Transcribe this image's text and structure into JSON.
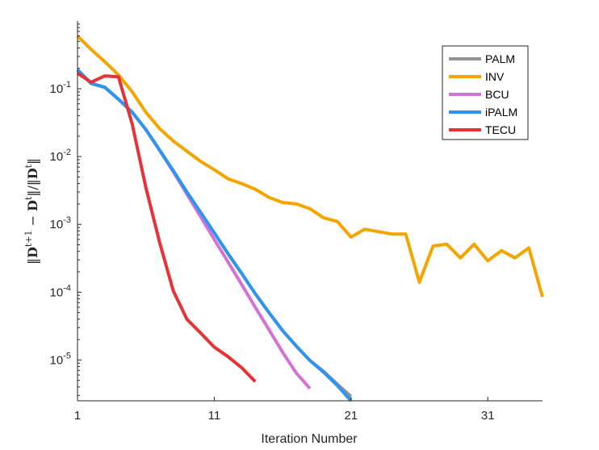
{
  "chart_data": {
    "type": "line",
    "xlabel": "Iteration Number",
    "ylabel": "||D^{t+1} − D^t|| / ||D^t||",
    "ylabel_parts": {
      "n1": "D",
      "s1": "t+1",
      "m": " − ",
      "n2": "D",
      "s2": "t",
      "div": "/",
      "d": "D",
      "s3": "t"
    },
    "xlim": [
      1,
      35
    ],
    "ylim": [
      2.5e-06,
      1
    ],
    "yscale": "log",
    "xticks": [
      1,
      11,
      21,
      31
    ],
    "xtick_labels": [
      "1",
      "11",
      "21",
      "31"
    ],
    "yticks": [
      1e-05,
      0.0001,
      0.001,
      0.01,
      0.1
    ],
    "ytick_labels": [
      {
        "base": "10",
        "exp": "-5"
      },
      {
        "base": "10",
        "exp": "-4"
      },
      {
        "base": "10",
        "exp": "-3"
      },
      {
        "base": "10",
        "exp": "-2"
      },
      {
        "base": "10",
        "exp": "-1"
      }
    ],
    "legend_position": "top-right",
    "grid": false,
    "series": [
      {
        "name": "PALM",
        "color": "#939393",
        "x": [
          1,
          2,
          3,
          4,
          5,
          6,
          7,
          8,
          9,
          10,
          11,
          12,
          13,
          14,
          15,
          16,
          17,
          18,
          19,
          20,
          21
        ],
        "y": [
          0.19,
          0.12,
          0.105,
          0.07,
          0.045,
          0.025,
          0.0125,
          0.0062,
          0.003,
          0.0015,
          0.00075,
          0.00037,
          0.00019,
          9.5e-05,
          5e-05,
          2.7e-05,
          1.6e-05,
          9.8e-06,
          6.8e-06,
          4.4e-06,
          2.9e-06
        ]
      },
      {
        "name": "INV",
        "color": "#f5a500",
        "x": [
          1,
          2,
          3,
          4,
          5,
          6,
          7,
          8,
          9,
          10,
          11,
          12,
          13,
          14,
          15,
          16,
          17,
          18,
          19,
          20,
          21,
          22,
          23,
          24,
          25,
          26,
          27,
          28,
          29,
          30,
          31,
          32,
          33,
          34,
          35
        ],
        "y": [
          0.6,
          0.38,
          0.25,
          0.16,
          0.09,
          0.045,
          0.026,
          0.017,
          0.012,
          0.0085,
          0.0064,
          0.0047,
          0.004,
          0.0033,
          0.0025,
          0.0021,
          0.002,
          0.0017,
          0.00125,
          0.0011,
          0.00065,
          0.00085,
          0.00078,
          0.00072,
          0.00072,
          0.00014,
          0.00048,
          0.00051,
          0.00032,
          0.00051,
          0.00029,
          0.00041,
          0.00032,
          0.00045,
          8.5e-05
        ]
      },
      {
        "name": "BCU",
        "color": "#d570d5",
        "x": [
          1,
          2,
          3,
          4,
          5,
          6,
          7,
          8,
          9,
          10,
          11,
          12,
          13,
          14,
          15,
          16,
          17,
          18
        ],
        "y": [
          0.19,
          0.12,
          0.105,
          0.07,
          0.045,
          0.025,
          0.0125,
          0.006,
          0.0028,
          0.0013,
          0.0006,
          0.00028,
          0.00013,
          6e-05,
          2.8e-05,
          1.3e-05,
          6.4e-06,
          3.8e-06
        ]
      },
      {
        "name": "iPALM",
        "color": "#2d95f0",
        "x": [
          1,
          2,
          3,
          4,
          5,
          6,
          7,
          8,
          9,
          10,
          11,
          12,
          13,
          14,
          15,
          16,
          17,
          18,
          19,
          20,
          21
        ],
        "y": [
          0.19,
          0.12,
          0.105,
          0.07,
          0.045,
          0.025,
          0.0125,
          0.0062,
          0.003,
          0.0015,
          0.00075,
          0.00037,
          0.00019,
          9.5e-05,
          5e-05,
          2.7e-05,
          1.6e-05,
          9.8e-06,
          6.6e-06,
          4.2e-06,
          2.5e-06
        ]
      },
      {
        "name": "TECU",
        "color": "#e83236",
        "x": [
          1,
          2,
          3,
          4,
          5,
          6,
          7,
          8,
          9,
          10,
          11,
          12,
          13,
          14
        ],
        "y": [
          0.17,
          0.125,
          0.155,
          0.15,
          0.03,
          0.0035,
          0.00055,
          0.000105,
          4e-05,
          2.5e-05,
          1.55e-05,
          1.12e-05,
          7.7e-06,
          4.8e-06
        ]
      }
    ]
  }
}
